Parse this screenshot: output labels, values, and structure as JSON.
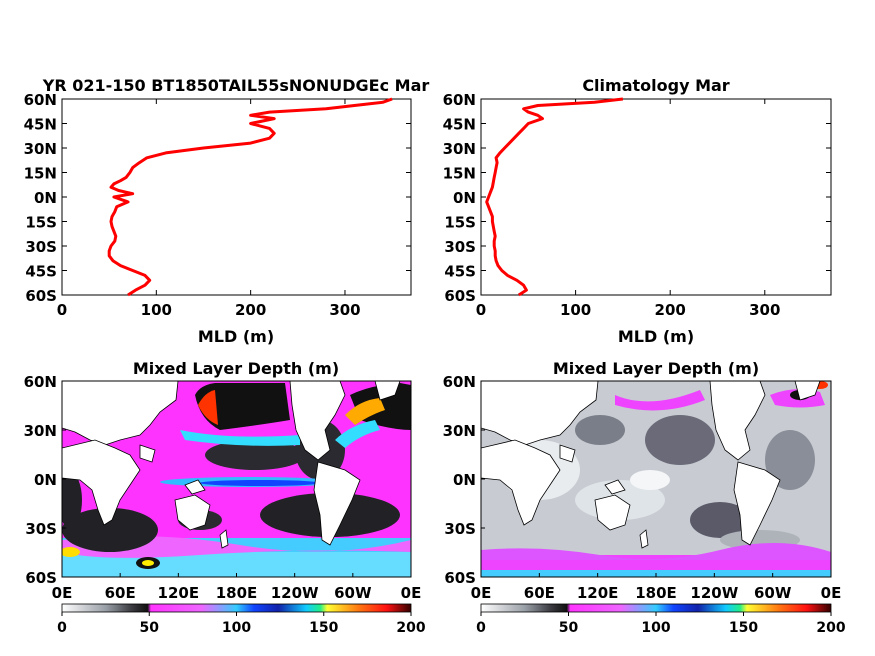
{
  "colors": {
    "profile_line": "#ff0000",
    "ocean_fill": "#ff33ff",
    "land_fill": "#ffffff"
  },
  "chart_data": [
    {
      "type": "line",
      "title": "YR 021-150 BT1850TAIL55sNONUDGEc Mar",
      "xlabel": "MLD (m)",
      "xlim": [
        0,
        370
      ],
      "ylim": [
        -60,
        60
      ],
      "xticks": [
        "0",
        "100",
        "200",
        "300"
      ],
      "yticks": [
        "60N",
        "45N",
        "30N",
        "15N",
        "0N",
        "15S",
        "30S",
        "45S",
        "60S"
      ],
      "series": [
        {
          "lat": [
            -60,
            -57,
            -54,
            -51,
            -48,
            -45,
            -42,
            -39,
            -36,
            -33,
            -30,
            -27,
            -24,
            -21,
            -18,
            -15,
            -12,
            -9,
            -6,
            -3,
            0,
            2,
            4,
            6,
            8,
            10,
            12,
            15,
            18,
            21,
            24,
            27,
            30,
            33,
            36,
            39,
            42,
            45,
            48,
            50,
            52,
            54,
            56,
            58,
            60
          ],
          "values": [
            70,
            78,
            88,
            93,
            88,
            75,
            62,
            54,
            50,
            50,
            52,
            56,
            57,
            55,
            53,
            52,
            53,
            56,
            58,
            70,
            55,
            75,
            60,
            52,
            55,
            62,
            68,
            72,
            75,
            82,
            90,
            110,
            150,
            200,
            220,
            225,
            220,
            200,
            225,
            200,
            220,
            280,
            310,
            340,
            350
          ]
        }
      ]
    },
    {
      "type": "line",
      "title": "Climatology Mar",
      "xlabel": "MLD (m)",
      "xlim": [
        0,
        370
      ],
      "ylim": [
        -60,
        60
      ],
      "xticks": [
        "0",
        "100",
        "200",
        "300"
      ],
      "yticks": [
        "60N",
        "45N",
        "30N",
        "15N",
        "0N",
        "15S",
        "30S",
        "45S",
        "60S"
      ],
      "series": [
        {
          "lat": [
            -60,
            -57,
            -54,
            -51,
            -48,
            -45,
            -42,
            -39,
            -36,
            -33,
            -30,
            -27,
            -24,
            -21,
            -18,
            -15,
            -12,
            -9,
            -6,
            -3,
            0,
            3,
            6,
            9,
            12,
            15,
            18,
            21,
            24,
            27,
            30,
            33,
            36,
            39,
            42,
            45,
            48,
            50,
            52,
            54,
            56,
            58,
            60
          ],
          "values": [
            40,
            48,
            45,
            38,
            28,
            22,
            18,
            16,
            15,
            15,
            14,
            14,
            15,
            14,
            13,
            12,
            12,
            10,
            8,
            6,
            8,
            10,
            12,
            13,
            14,
            15,
            16,
            17,
            16,
            20,
            25,
            30,
            35,
            40,
            45,
            50,
            65,
            60,
            50,
            45,
            60,
            120,
            150
          ]
        }
      ]
    },
    {
      "type": "heatmap",
      "title": "Mixed Layer Depth (m)",
      "xticks": [
        "0E",
        "60E",
        "120E",
        "180E",
        "120W",
        "60W",
        "0E"
      ],
      "yticks": [
        "60N",
        "30N",
        "0N",
        "30S",
        "60S"
      ],
      "colorbar_ticks": [
        "0",
        "50",
        "100",
        "150",
        "200"
      ],
      "colorbar_range": [
        0,
        200
      ]
    },
    {
      "type": "heatmap",
      "title": "Mixed Layer Depth (m)",
      "xticks": [
        "0E",
        "60E",
        "120E",
        "180E",
        "120W",
        "60W",
        "0E"
      ],
      "yticks": [
        "60N",
        "30N",
        "0N",
        "30S",
        "60S"
      ],
      "colorbar_ticks": [
        "0",
        "50",
        "100",
        "150",
        "200"
      ],
      "colorbar_range": [
        0,
        200
      ]
    }
  ]
}
